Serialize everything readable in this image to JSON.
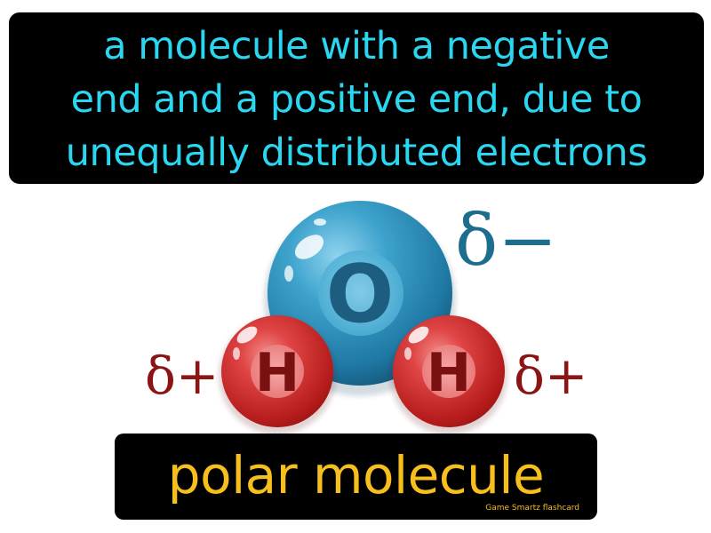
{
  "definition": {
    "lines": [
      "a molecule with a negative",
      "end and a positive end, due to",
      "unequally distributed electrons"
    ]
  },
  "molecule": {
    "oxygen_label": "O",
    "hydrogen_left_label": "H",
    "hydrogen_right_label": "H",
    "charge_oxygen": "δ−",
    "charge_hydrogen_left": "δ+",
    "charge_hydrogen_right": "δ+"
  },
  "term": "polar molecule",
  "brand": "Game  Smartz  flashcard",
  "colors": {
    "definition_text": "#2ad6f0",
    "term_text": "#f7bf1d",
    "oxygen_atom": "#2a8bb6",
    "hydrogen_atom": "#c81e1e",
    "oxygen_charge": "#1d6e8e",
    "hydrogen_charge": "#8b1414"
  }
}
